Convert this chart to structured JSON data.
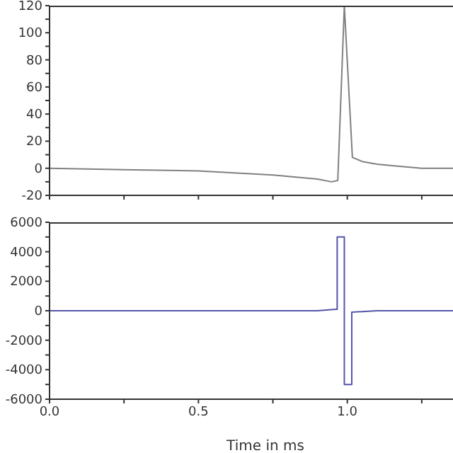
{
  "chart_data": [
    {
      "type": "line",
      "tick_labels": "y",
      "xlim": [
        0,
        1.45
      ],
      "xticks": [
        {
          "value": 0,
          "label": null
        },
        {
          "value": 0.25,
          "label": null
        },
        {
          "value": 0.5,
          "label": null
        },
        {
          "value": 0.75,
          "label": null
        },
        {
          "value": 1,
          "label": null
        },
        {
          "value": 1.25,
          "label": null
        }
      ],
      "ylim": [
        -20,
        120
      ],
      "yticks": [
        -20,
        {
          "value": -10,
          "label": null
        },
        0,
        {
          "value": 10,
          "label": null
        },
        20,
        {
          "value": 30,
          "label": null
        },
        40,
        {
          "value": 50,
          "label": null
        },
        60,
        {
          "value": 70,
          "label": null
        },
        80,
        {
          "value": 90,
          "label": null
        },
        100,
        {
          "value": 110,
          "label": null
        },
        120
      ],
      "grid": false,
      "legend": false,
      "marker": "none",
      "line_style": "solid",
      "series": [
        {
          "color": "#808080",
          "x": [
            0,
            0.25,
            0.5,
            0.75,
            0.9,
            0.947,
            0.968,
            0.99,
            1.017,
            1.05,
            1.1,
            1.15,
            1.25,
            1.45
          ],
          "values": [
            0,
            -1,
            -2,
            -5,
            -8,
            -10,
            -9,
            120,
            8,
            5,
            3,
            2,
            0,
            0
          ]
        }
      ]
    },
    {
      "type": "line",
      "xlabel": "Time in ms",
      "xlim": [
        0,
        1.45
      ],
      "xticks": [
        {
          "value": 0,
          "label": "0.0"
        },
        {
          "value": 0.25,
          "label": null
        },
        {
          "value": 0.5,
          "label": "0.5"
        },
        {
          "value": 0.75,
          "label": null
        },
        {
          "value": 1,
          "label": "1.0"
        },
        {
          "value": 1.25,
          "label": null
        }
      ],
      "ylim": [
        -6000,
        6000
      ],
      "yticks": [
        -6000,
        {
          "value": -5000,
          "label": null
        },
        -4000,
        {
          "value": -3000,
          "label": null
        },
        -2000,
        {
          "value": -1000,
          "label": null
        },
        0,
        {
          "value": 1000,
          "label": null
        },
        2000,
        {
          "value": 3000,
          "label": null
        },
        4000,
        {
          "value": 5000,
          "label": null
        },
        6000
      ],
      "grid": false,
      "legend": false,
      "marker": "none",
      "line_style": "solid",
      "series": [
        {
          "color": "#5555aa",
          "x": [
            0,
            0.5,
            0.9,
            0.96,
            0.966,
            0.966,
            0.99,
            0.99,
            1.015,
            1.015,
            1.1,
            1.45
          ],
          "values": [
            0,
            0,
            0,
            100,
            100,
            5000,
            5000,
            -5000,
            -5000,
            -100,
            0,
            0
          ]
        }
      ]
    }
  ]
}
